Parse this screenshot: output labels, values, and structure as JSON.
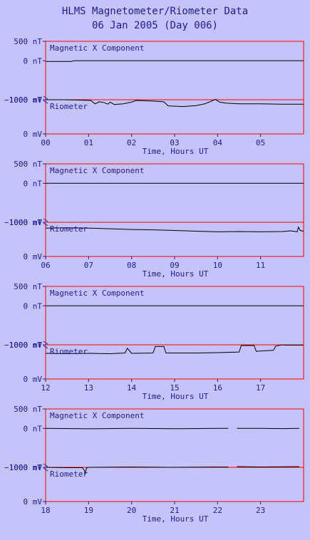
{
  "header": {
    "title": "HLMS Magnetometer/Riometer Data",
    "date_line": "06 Jan 2005 (Day 006)"
  },
  "colors": {
    "background": "#c4c4fa",
    "text": "#1c1c96",
    "frame": "#ff0000",
    "trace": "#000000"
  },
  "chart_data": {
    "type": "line",
    "title": "HLMS Magnetometer/Riometer Data",
    "subtitle": "06 Jan 2005 (Day 006)",
    "xlabel": "Time, Hours UT",
    "grid": false,
    "panels": [
      {
        "x_range": [
          0,
          6
        ],
        "x_ticks": [
          "00",
          "01",
          "02",
          "03",
          "04",
          "05"
        ],
        "xlabel": "Time, Hours UT",
        "magnetic": {
          "label": "Magnetic X Component",
          "ylim": [
            -1000,
            500
          ],
          "y_ticks": [
            "500 nT",
            "0 nT",
            "−1000 nT"
          ],
          "y_tick_values": [
            500,
            0,
            -1000
          ],
          "x": [
            0.0,
            0.6,
            0.65,
            2.0,
            4.0,
            6.0
          ],
          "y": [
            -15,
            -15,
            0,
            0,
            0,
            0
          ]
        },
        "riometer": {
          "label": "Riometer",
          "ylim": [
            0,
            1000
          ],
          "y_ticks": [
            "1000 mV",
            "0 mV"
          ],
          "y_tick_values": [
            1000,
            0
          ],
          "x": [
            0.0,
            0.4,
            0.8,
            1.05,
            1.15,
            1.25,
            1.35,
            1.45,
            1.5,
            1.6,
            1.8,
            2.0,
            2.1,
            2.5,
            2.75,
            2.85,
            3.2,
            3.5,
            3.7,
            3.8,
            3.95,
            4.05,
            4.2,
            4.5,
            5.0,
            5.5,
            6.0
          ],
          "y": [
            1000,
            1000,
            990,
            980,
            880,
            940,
            920,
            870,
            930,
            860,
            880,
            930,
            980,
            960,
            940,
            820,
            800,
            830,
            880,
            930,
            1010,
            930,
            900,
            880,
            880,
            870,
            870
          ]
        }
      },
      {
        "x_range": [
          6,
          12
        ],
        "x_ticks": [
          "06",
          "07",
          "08",
          "09",
          "10",
          "11"
        ],
        "xlabel": "Time, Hours UT",
        "magnetic": {
          "label": "Magnetic X Component",
          "ylim": [
            -1000,
            500
          ],
          "y_ticks": [
            "500 nT",
            "0 nT",
            "−1000 nT"
          ],
          "y_tick_values": [
            500,
            0,
            -1000
          ],
          "x": [
            6.0,
            8.0,
            10.0,
            12.0
          ],
          "y": [
            0,
            0,
            0,
            0
          ]
        },
        "riometer": {
          "label": "Riometer",
          "ylim": [
            0,
            1000
          ],
          "y_ticks": [
            "1000 mV",
            "0 mV"
          ],
          "y_tick_values": [
            1000,
            0
          ],
          "x": [
            6.0,
            6.5,
            7.0,
            7.5,
            8.0,
            8.5,
            9.0,
            9.5,
            10.0,
            10.5,
            11.0,
            11.5,
            11.7,
            11.85,
            11.88,
            11.92,
            12.0
          ],
          "y": [
            830,
            840,
            830,
            810,
            790,
            780,
            760,
            740,
            720,
            730,
            720,
            730,
            750,
            720,
            860,
            760,
            740
          ]
        }
      },
      {
        "x_range": [
          12,
          18
        ],
        "x_ticks": [
          "12",
          "13",
          "14",
          "15",
          "16",
          "17"
        ],
        "xlabel": "Time, Hours UT",
        "magnetic": {
          "label": "Magnetic X Component",
          "ylim": [
            -1000,
            500
          ],
          "y_ticks": [
            "500 nT",
            "0 nT",
            "−1000 nT"
          ],
          "y_tick_values": [
            500,
            0,
            -1000
          ],
          "x": [
            12.0,
            14.0,
            16.0,
            18.0
          ],
          "y": [
            0,
            0,
            0,
            0
          ]
        },
        "riometer": {
          "label": "Riometer",
          "ylim": [
            0,
            1000
          ],
          "y_ticks": [
            "1000 mV",
            "0 mV"
          ],
          "y_tick_values": [
            1000,
            0
          ],
          "x": [
            12.0,
            12.5,
            13.0,
            13.5,
            13.85,
            13.9,
            14.0,
            14.5,
            14.55,
            14.75,
            14.8,
            15.5,
            16.0,
            16.5,
            16.55,
            16.85,
            16.9,
            17.3,
            17.35,
            17.5,
            17.6,
            18.0
          ],
          "y": [
            750,
            740,
            750,
            740,
            760,
            900,
            750,
            760,
            950,
            950,
            760,
            760,
            770,
            790,
            980,
            980,
            810,
            840,
            960,
            1000,
            990,
            990
          ]
        }
      },
      {
        "x_range": [
          18,
          24
        ],
        "x_ticks": [
          "18",
          "19",
          "20",
          "21",
          "22",
          "23"
        ],
        "xlabel": "Time, Hours UT",
        "magnetic": {
          "label": "Magnetic X Component",
          "ylim": [
            -1000,
            500
          ],
          "y_ticks": [
            "500 nT",
            "0 nT",
            "−1000 nT"
          ],
          "y_tick_values": [
            500,
            0,
            -1000
          ],
          "x": [
            18.0,
            19.0,
            20.0,
            21.0,
            22.0,
            22.25,
            null,
            22.45,
            23.0,
            23.5,
            23.9
          ],
          "y": [
            0,
            -10,
            0,
            -8,
            0,
            0,
            null,
            0,
            0,
            -5,
            0
          ]
        },
        "riometer": {
          "label": "Riometer",
          "ylim": [
            0,
            1000
          ],
          "y_ticks": [
            "1000 mV",
            "0 mV"
          ],
          "y_tick_values": [
            1000,
            0
          ],
          "x": [
            18.0,
            18.5,
            18.85,
            18.9,
            18.92,
            18.95,
            19.0,
            20.0,
            21.0,
            22.0,
            22.25,
            null,
            22.45,
            23.0,
            23.9
          ],
          "y": [
            1000,
            990,
            990,
            920,
            800,
            980,
            1000,
            1010,
            1000,
            1010,
            1010,
            null,
            1020,
            1010,
            1020
          ]
        }
      }
    ]
  }
}
